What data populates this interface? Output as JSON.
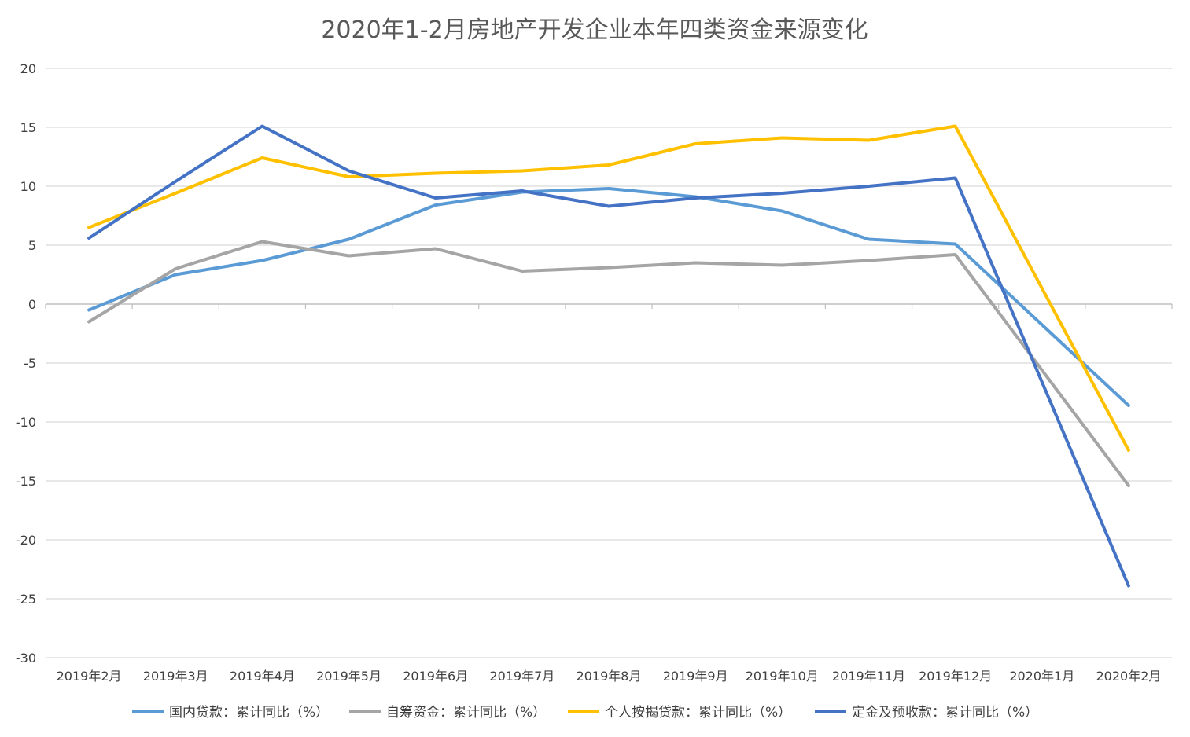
{
  "chart_data": {
    "type": "line",
    "title": "2020年1-2月房地产开发企业本年四类资金来源变化",
    "xlabel": "",
    "ylabel": "",
    "ylim": [
      -30,
      20
    ],
    "yticks": [
      20,
      15,
      10,
      5,
      0,
      -5,
      -10,
      -15,
      -20,
      -25,
      -30
    ],
    "grid": true,
    "legend_position": "bottom",
    "categories": [
      "2019年2月",
      "2019年3月",
      "2019年4月",
      "2019年5月",
      "2019年6月",
      "2019年7月",
      "2019年8月",
      "2019年9月",
      "2019年10月",
      "2019年11月",
      "2019年12月",
      "2020年1月",
      "2020年2月"
    ],
    "series": [
      {
        "name": "国内贷款：累计同比（%）",
        "color": "#5B9BD5",
        "values": [
          -0.5,
          2.5,
          3.7,
          5.5,
          8.4,
          9.5,
          9.8,
          9.1,
          7.9,
          5.5,
          5.1,
          null,
          -8.6
        ]
      },
      {
        "name": "自筹资金：累计同比（%）",
        "color": "#A5A5A5",
        "values": [
          -1.5,
          3.0,
          5.3,
          4.1,
          4.7,
          2.8,
          3.1,
          3.5,
          3.3,
          3.7,
          4.2,
          null,
          -15.4
        ]
      },
      {
        "name": "个人按揭贷款：累计同比（%）",
        "color": "#FFC000",
        "values": [
          6.5,
          9.4,
          12.4,
          10.8,
          11.1,
          11.3,
          11.8,
          13.6,
          14.1,
          13.9,
          15.1,
          null,
          -12.4
        ]
      },
      {
        "name": "定金及预收款：累计同比（%）",
        "color": "#4472C4",
        "values": [
          5.6,
          10.4,
          15.1,
          11.3,
          9.0,
          9.6,
          8.3,
          9.0,
          9.4,
          10.0,
          10.7,
          null,
          -23.9
        ]
      }
    ]
  }
}
